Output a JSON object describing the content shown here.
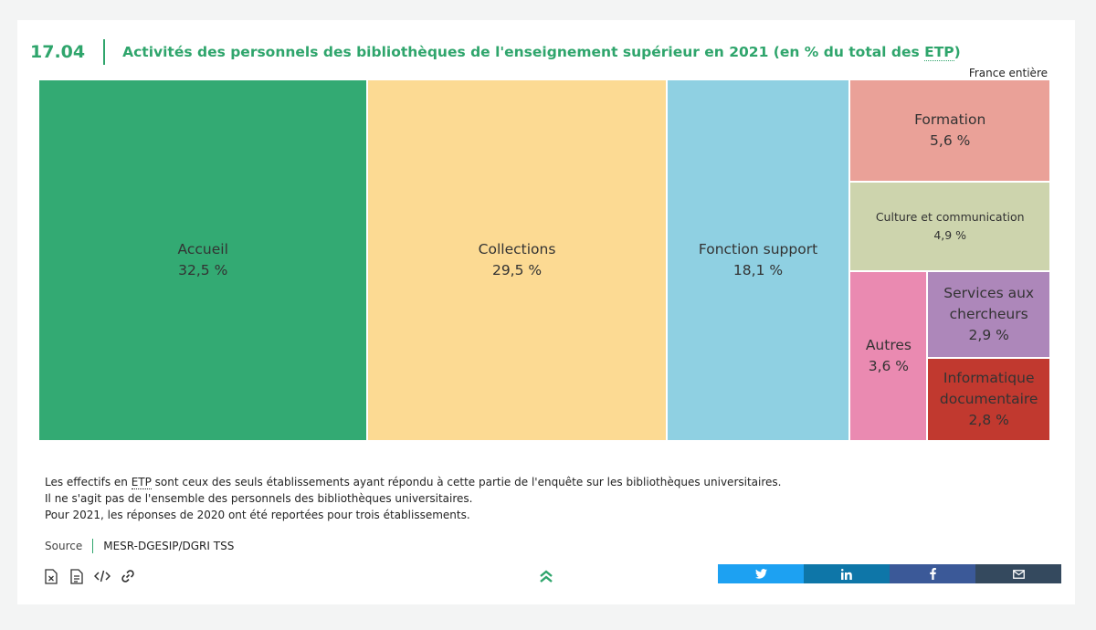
{
  "header": {
    "figure_number": "17.04",
    "title_main": "Activités des personnels des bibliothèques de l'enseignement supérieur en 2021 (en % du total des ",
    "title_abbr": "ETP",
    "title_end": ")",
    "scope": "France entière"
  },
  "chart_data": {
    "type": "treemap",
    "title": "Activités des personnels des bibliothèques de l'enseignement supérieur en 2021 (en % du total des ETP)",
    "unit": "%",
    "items": [
      {
        "label": "Accueil",
        "value": 32.5,
        "value_label": "32,5 %",
        "color": "#33aa73"
      },
      {
        "label": "Collections",
        "value": 29.5,
        "value_label": "29,5 %",
        "color": "#fcda93"
      },
      {
        "label": "Fonction support",
        "value": 18.1,
        "value_label": "18,1 %",
        "color": "#8fd0e2"
      },
      {
        "label": "Formation",
        "value": 5.6,
        "value_label": "5,6 %",
        "color": "#eaa198"
      },
      {
        "label": "Culture et communication",
        "value": 4.9,
        "value_label": "4,9 %",
        "color": "#cdd4ad"
      },
      {
        "label": "Autres",
        "value": 3.6,
        "value_label": "3,6 %",
        "color": "#ea8ab1"
      },
      {
        "label": "Services aux chercheurs",
        "value": 2.9,
        "value_label": "2,9 %",
        "color": "#ad87ba"
      },
      {
        "label": "Informatique documentaire",
        "value": 2.8,
        "value_label": "2,8 %",
        "color": "#c1392f"
      }
    ]
  },
  "notes": {
    "line1_pre": "Les effectifs en ",
    "line1_abbr": "ETP",
    "line1_post": " sont ceux des seuls établissements ayant répondu à cette partie de l'enquête sur les bibliothèques universitaires.",
    "line2": "Il ne s'agit pas de l'ensemble des personnels des bibliothèques universitaires.",
    "line3": "Pour 2021, les réponses de 2020 ont été reportées pour trois établissements."
  },
  "source": {
    "label": "Source",
    "value": "MESR-DGESIP/DGRI TSS"
  },
  "tools": [
    "excel-download-icon",
    "document-icon",
    "embed-code-icon",
    "link-icon"
  ],
  "share": [
    {
      "name": "twitter",
      "color": "#1da1f2"
    },
    {
      "name": "linkedin",
      "color": "#0e76a8"
    },
    {
      "name": "facebook",
      "color": "#3b5998"
    },
    {
      "name": "email",
      "color": "#34495e"
    }
  ]
}
